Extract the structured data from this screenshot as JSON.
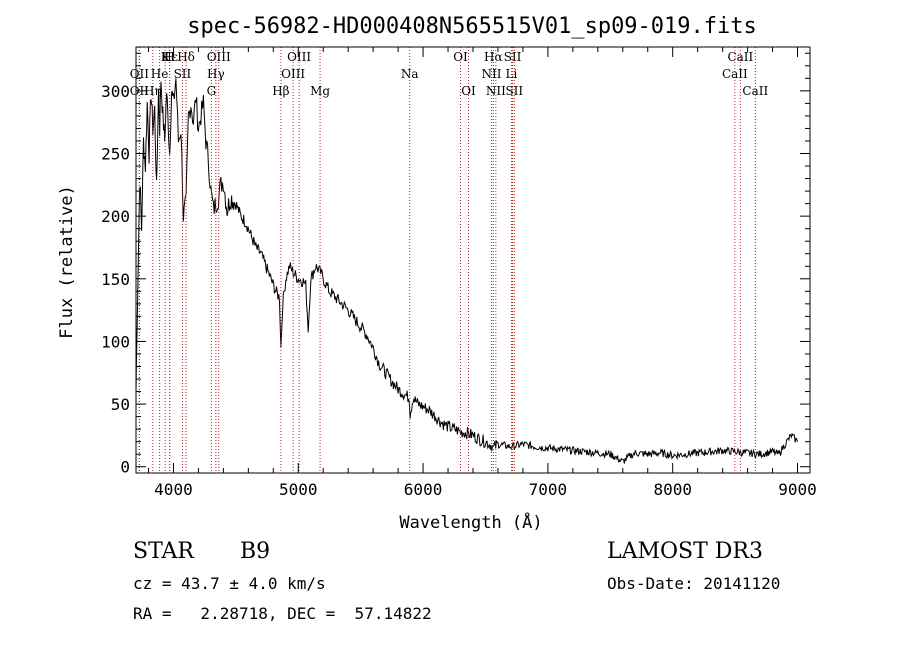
{
  "chart_data": {
    "type": "line",
    "title": "spec-56982-HD000408N565515V01_sp09-019.fits",
    "xlabel": "Wavelength (Å)",
    "ylabel": "Flux (relative)",
    "xlim": [
      3700,
      9100
    ],
    "ylim": [
      -5,
      335
    ],
    "x_ticks": [
      4000,
      5000,
      6000,
      7000,
      8000,
      9000
    ],
    "x_tick_labels": [
      "4000",
      "5000",
      "6000",
      "7000",
      "8000",
      "9000"
    ],
    "y_ticks": [
      0,
      50,
      100,
      150,
      200,
      250,
      300
    ],
    "y_tick_labels": [
      "0",
      "50",
      "100",
      "150",
      "200",
      "250",
      "300"
    ],
    "grid": false,
    "series": [
      {
        "x": [
          3700,
          3715,
          3730,
          3745,
          3760,
          3775,
          3790,
          3805,
          3820,
          3835,
          3850,
          3865,
          3880,
          3890,
          3900,
          3915,
          3930,
          3945,
          3960,
          3970,
          3985,
          4000,
          4020,
          4040,
          4060,
          4080,
          4101,
          4120,
          4140,
          4160,
          4180,
          4200,
          4220,
          4240,
          4260,
          4280,
          4300,
          4320,
          4340,
          4360,
          4380,
          4400,
          4430,
          4460,
          4500,
          4540,
          4580,
          4620,
          4660,
          4700,
          4740,
          4780,
          4820,
          4850,
          4861,
          4875,
          4900,
          4930,
          4960,
          5000,
          5040,
          5060,
          5080,
          5100,
          5140,
          5180,
          5200,
          5250,
          5300,
          5350,
          5400,
          5450,
          5500,
          5550,
          5600,
          5650,
          5700,
          5750,
          5800,
          5850,
          5890,
          5896,
          5920,
          5960,
          6000,
          6050,
          6100,
          6150,
          6200,
          6250,
          6300,
          6350,
          6400,
          6450,
          6500,
          6550,
          6563,
          6600,
          6650,
          6700,
          6750,
          6800,
          6900,
          7000,
          7100,
          7200,
          7300,
          7400,
          7500,
          7600,
          7650,
          7700,
          7800,
          7900,
          8000,
          8100,
          8200,
          8300,
          8400,
          8500,
          8600,
          8700,
          8800,
          8850,
          8900,
          8950,
          9000
        ],
        "y": [
          60,
          150,
          230,
          190,
          260,
          240,
          290,
          250,
          300,
          270,
          285,
          220,
          300,
          270,
          310,
          280,
          260,
          300,
          270,
          250,
          300,
          290,
          310,
          260,
          270,
          200,
          210,
          280,
          290,
          275,
          295,
          270,
          280,
          290,
          260,
          245,
          220,
          205,
          210,
          215,
          225,
          228,
          205,
          215,
          210,
          200,
          195,
          185,
          175,
          170,
          160,
          150,
          140,
          135,
          95,
          130,
          150,
          160,
          155,
          150,
          148,
          145,
          110,
          150,
          160,
          155,
          150,
          140,
          135,
          130,
          125,
          118,
          112,
          105,
          95,
          82,
          75,
          68,
          62,
          58,
          55,
          42,
          55,
          50,
          48,
          45,
          40,
          35,
          32,
          30,
          28,
          27,
          25,
          22,
          20,
          17,
          15,
          18,
          17,
          16,
          17,
          18,
          16,
          15,
          14,
          13,
          12,
          11,
          10,
          4,
          8,
          11,
          10,
          11,
          9,
          10,
          11,
          12,
          13,
          12,
          11,
          10,
          12,
          10,
          18,
          25,
          20
        ]
      }
    ],
    "lines": [
      {
        "label": "Hε",
        "x": 3970,
        "row": 1
      },
      {
        "label": "K",
        "x": 3934,
        "row": 1
      },
      {
        "label": "H",
        "x": 3969,
        "row": 1
      },
      {
        "label": "Hδ",
        "x": 4101,
        "row": 1
      },
      {
        "label": "OIII",
        "x": 4363,
        "row": 1
      },
      {
        "label": "OIII",
        "x": 5007,
        "row": 1
      },
      {
        "label": "OI",
        "x": 6300,
        "row": 1
      },
      {
        "label": "Hα",
        "x": 6563,
        "row": 1
      },
      {
        "label": "SII",
        "x": 6717,
        "row": 1
      },
      {
        "label": "CaII",
        "x": 8542,
        "row": 1
      },
      {
        "label": "OII",
        "x": 3727,
        "row": 2
      },
      {
        "label": "He",
        "x": 3889,
        "row": 2
      },
      {
        "label": "SII",
        "x": 4072,
        "row": 2
      },
      {
        "label": "Hγ",
        "x": 4340,
        "row": 2
      },
      {
        "label": "OIII",
        "x": 4959,
        "row": 2
      },
      {
        "label": "Na",
        "x": 5893,
        "row": 2
      },
      {
        "label": "NII",
        "x": 6548,
        "row": 2
      },
      {
        "label": "Li",
        "x": 6708,
        "row": 2
      },
      {
        "label": "CaII",
        "x": 8498,
        "row": 2
      },
      {
        "label": "OII",
        "x": 3727,
        "row": 3
      },
      {
        "label": "Hη",
        "x": 3835,
        "row": 3
      },
      {
        "label": "G",
        "x": 4304,
        "row": 3
      },
      {
        "label": "Hβ",
        "x": 4861,
        "row": 3
      },
      {
        "label": "Mg",
        "x": 5175,
        "row": 3
      },
      {
        "label": "OI",
        "x": 6364,
        "row": 3
      },
      {
        "label": "NII",
        "x": 6583,
        "row": 3
      },
      {
        "label": "SII",
        "x": 6731,
        "row": 3
      },
      {
        "label": "CaII",
        "x": 8662,
        "row": 3
      }
    ],
    "line_label_texts": {
      "row1": [
        "H",
        "Hε",
        "K",
        "Hδ",
        "OIII",
        "OIII",
        "OI",
        "Hα",
        "SII",
        "CaII"
      ],
      "row2": [
        "OII",
        "He",
        "SII",
        "Hγ",
        "OIII",
        "Na",
        "NII",
        "Li",
        "CaII"
      ],
      "row3": [
        "OII",
        "Hη",
        "G",
        "Hβ",
        "Mg",
        "OI",
        "NII",
        "SII",
        "CaII"
      ]
    }
  },
  "info": {
    "class_label": "STAR",
    "subclass": "B9",
    "survey": "LAMOST DR3",
    "cz": "cz = 43.7 ± 4.0 km/s",
    "obs_date": "Obs-Date: 20141120",
    "coords": "RA =   2.28718, DEC =  57.14822"
  }
}
